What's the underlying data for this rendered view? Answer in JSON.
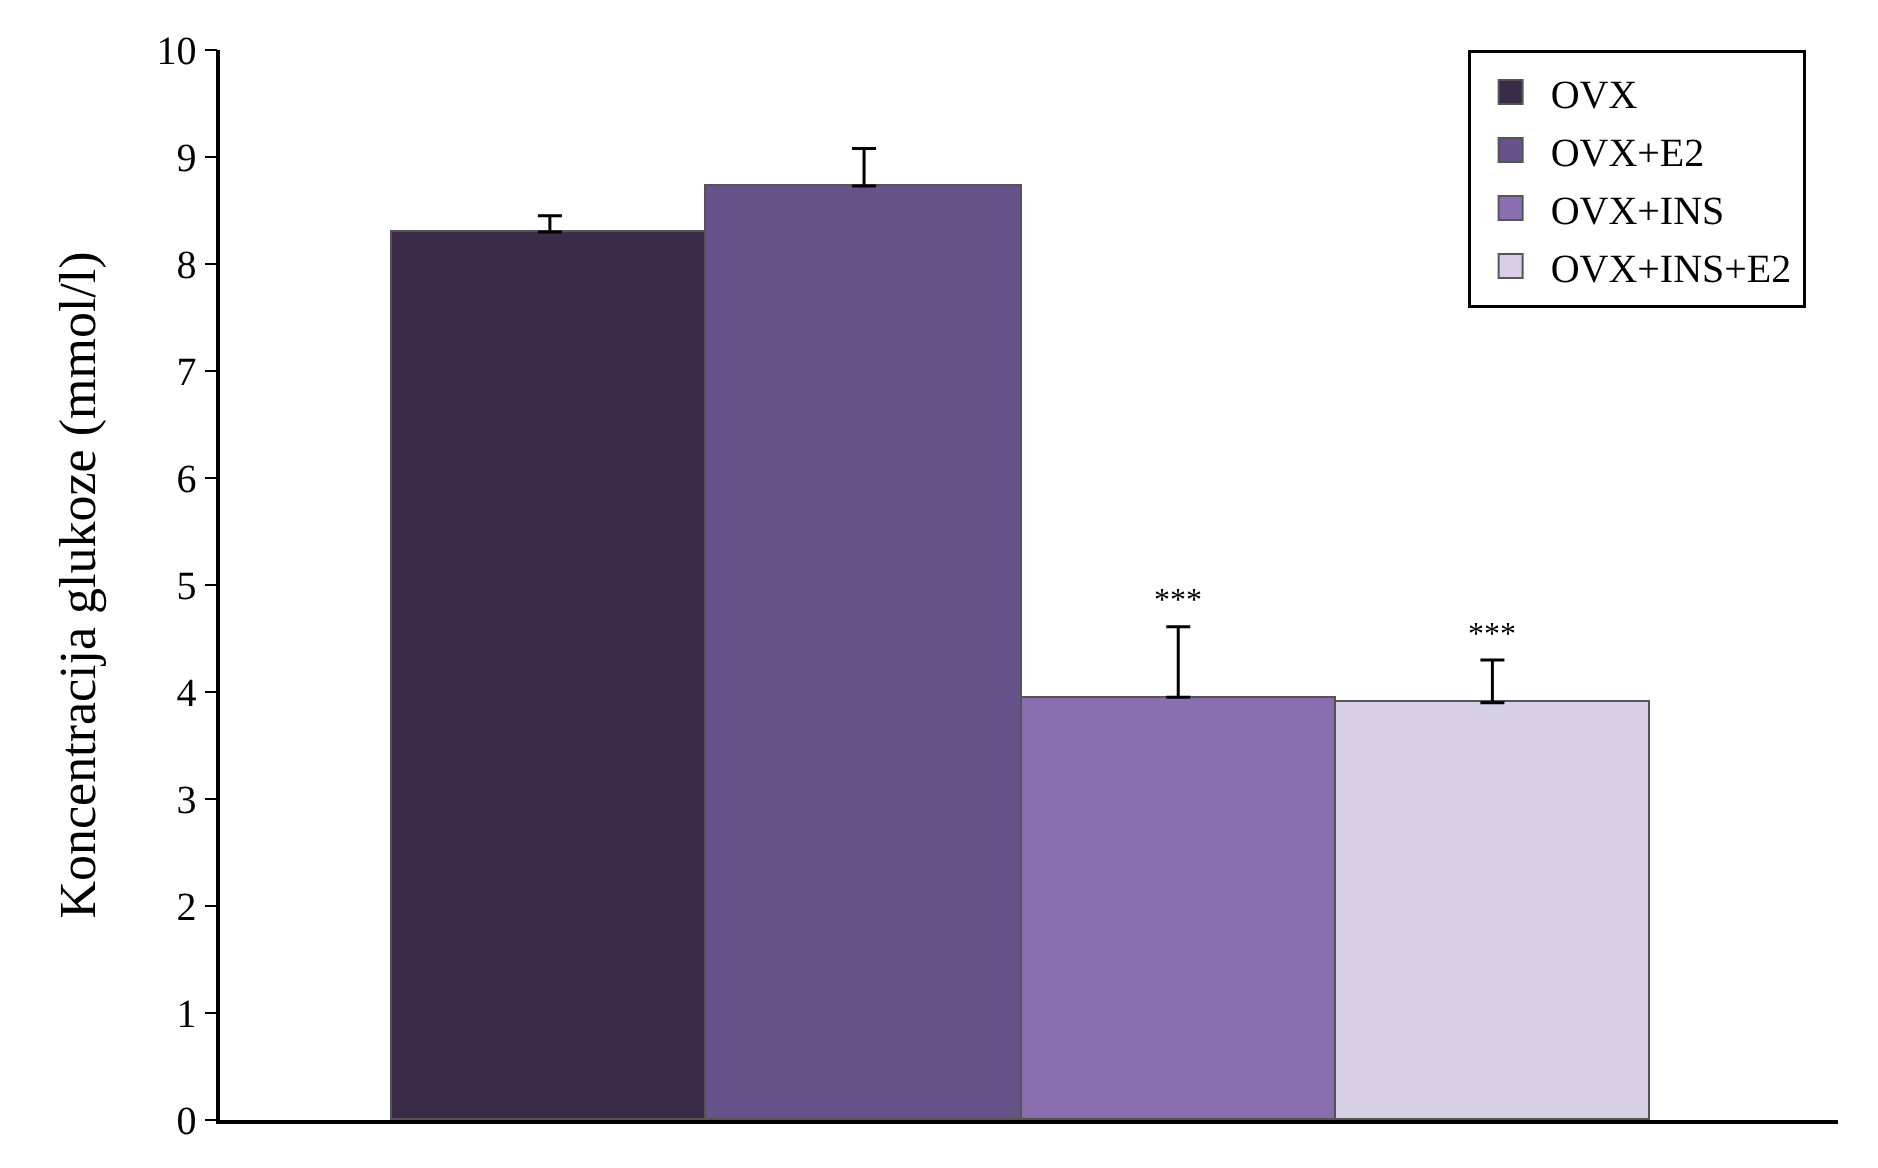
{
  "chart_data": {
    "type": "bar",
    "ylabel": "Koncentracija glukoze (mmol/l)",
    "categories": [
      null,
      null,
      null,
      null
    ],
    "series": [
      {
        "name": "OVX",
        "color": "#3a2b48",
        "values": [
          8.3,
          null,
          null,
          null
        ],
        "errors": [
          [
            8.3,
            8.45
          ],
          null,
          null,
          null
        ]
      },
      {
        "name": "OVX+E2",
        "color": "#67528a",
        "values": [
          null,
          8.73,
          null,
          null
        ],
        "errors": [
          null,
          [
            8.73,
            9.08
          ],
          null,
          null
        ]
      },
      {
        "name": "OVX+INS",
        "color": "#8a6fb0",
        "values": [
          null,
          null,
          3.95,
          null
        ],
        "errors": [
          null,
          null,
          [
            3.95,
            4.61
          ],
          null
        ],
        "value_labels": [
          null,
          null,
          "***",
          null
        ]
      },
      {
        "name": "OVX+INS+E2",
        "color": "#d8cfe6",
        "values": [
          null,
          null,
          null,
          3.9
        ],
        "errors": [
          null,
          null,
          null,
          [
            3.9,
            4.3
          ]
        ],
        "value_labels": [
          null,
          null,
          null,
          "***"
        ]
      }
    ],
    "ylim": [
      0,
      10
    ],
    "yticks": [
      0,
      1,
      2,
      3,
      4,
      5,
      6,
      7,
      8,
      9,
      10
    ],
    "grid": false,
    "legend": "top right"
  }
}
